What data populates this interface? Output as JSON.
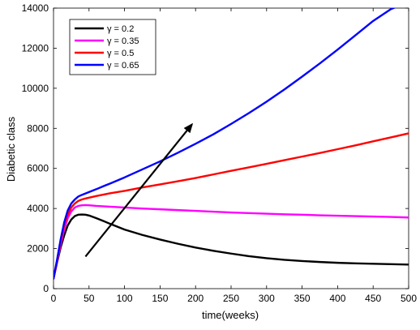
{
  "chart_data": {
    "type": "line",
    "xlabel": "time(weeks)",
    "ylabel": "Diabetic class",
    "xlim": [
      0,
      500
    ],
    "ylim": [
      0,
      14000
    ],
    "x_ticks": [
      0,
      50,
      100,
      150,
      200,
      250,
      300,
      350,
      400,
      450,
      500
    ],
    "y_ticks": [
      0,
      2000,
      4000,
      6000,
      8000,
      10000,
      12000,
      14000
    ],
    "grid": false,
    "legend_position": "top-left",
    "x": [
      0,
      5,
      10,
      15,
      20,
      25,
      30,
      35,
      40,
      45,
      50,
      60,
      70,
      80,
      100,
      125,
      150,
      175,
      200,
      225,
      250,
      275,
      300,
      325,
      350,
      375,
      400,
      425,
      450,
      475,
      500
    ],
    "series": [
      {
        "name": "γ = 0.2",
        "color": "#000000",
        "values": [
          500,
          1300,
          2050,
          2650,
          3150,
          3450,
          3620,
          3690,
          3700,
          3690,
          3650,
          3520,
          3380,
          3230,
          2950,
          2680,
          2450,
          2240,
          2050,
          1890,
          1750,
          1620,
          1520,
          1440,
          1380,
          1330,
          1290,
          1260,
          1240,
          1220,
          1200
        ]
      },
      {
        "name": "γ = 0.35",
        "color": "#ff00ff",
        "values": [
          500,
          1350,
          2200,
          2950,
          3500,
          3850,
          4050,
          4130,
          4160,
          4170,
          4160,
          4130,
          4110,
          4090,
          4050,
          4000,
          3960,
          3920,
          3880,
          3840,
          3800,
          3770,
          3740,
          3710,
          3690,
          3660,
          3640,
          3620,
          3600,
          3580,
          3550
        ]
      },
      {
        "name": "γ = 0.5",
        "color": "#ff0000",
        "values": [
          500,
          1400,
          2350,
          3150,
          3700,
          4050,
          4250,
          4380,
          4450,
          4500,
          4540,
          4620,
          4690,
          4760,
          4880,
          5050,
          5200,
          5360,
          5520,
          5700,
          5880,
          6050,
          6230,
          6410,
          6590,
          6770,
          6960,
          7150,
          7350,
          7550,
          7750
        ]
      },
      {
        "name": "γ = 0.65",
        "color": "#0000ff",
        "values": [
          500,
          1450,
          2450,
          3300,
          3900,
          4250,
          4450,
          4600,
          4680,
          4750,
          4820,
          4960,
          5110,
          5250,
          5550,
          5950,
          6350,
          6780,
          7230,
          7700,
          8220,
          8760,
          9330,
          9940,
          10580,
          11240,
          11930,
          12640,
          13360,
          13950,
          14300
        ]
      }
    ],
    "annotations": [
      {
        "type": "arrow",
        "from": [
          45,
          1600
        ],
        "to": [
          195,
          8200
        ],
        "color": "#000000"
      }
    ]
  }
}
